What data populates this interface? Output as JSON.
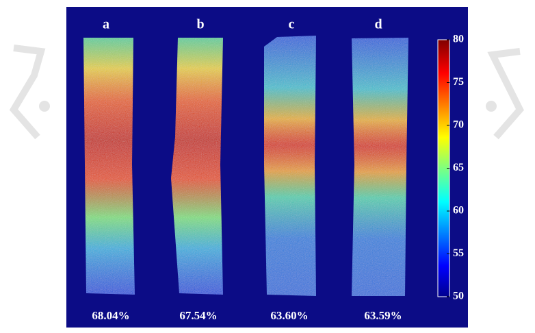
{
  "panels": [
    {
      "label": "a",
      "caption": "68.04%"
    },
    {
      "label": "b",
      "caption": "67.54%"
    },
    {
      "label": "c",
      "caption": "63.60%"
    },
    {
      "label": "d",
      "caption": "63.59%"
    }
  ],
  "colorbar": {
    "range": [
      50,
      80
    ],
    "ticks": [
      80,
      75,
      70,
      65,
      60,
      55,
      50
    ]
  }
}
